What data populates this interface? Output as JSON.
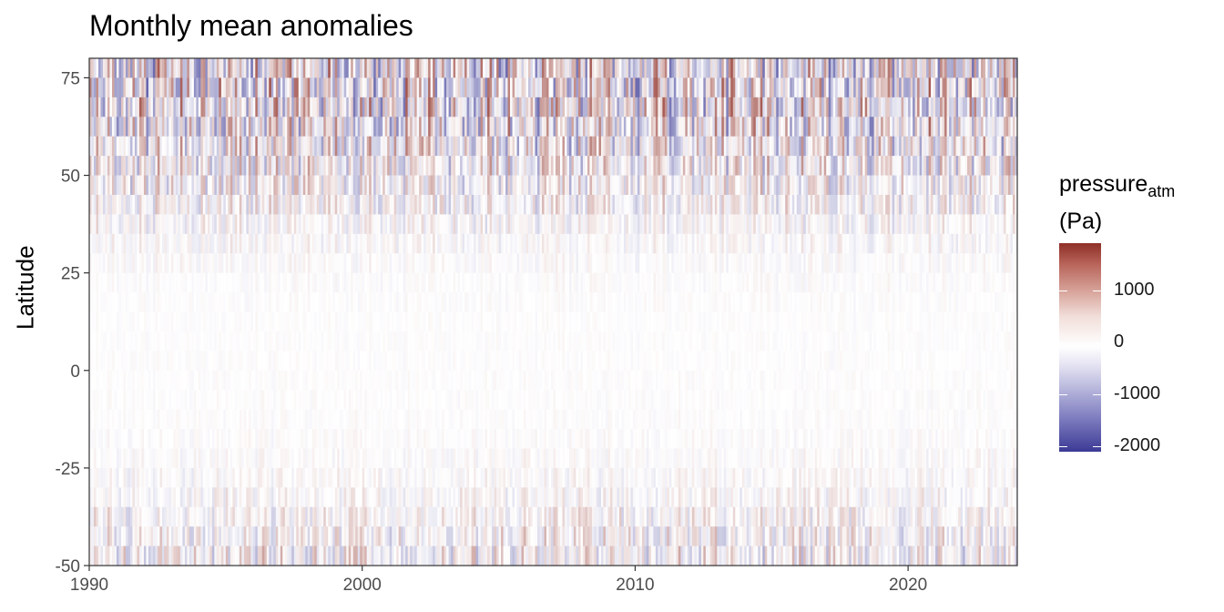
{
  "chart_data": {
    "type": "heatmap",
    "title": "Monthly mean anomalies",
    "xlabel": "",
    "ylabel": "Latitude",
    "xlim": [
      1990,
      2024
    ],
    "ylim": [
      -50,
      80
    ],
    "x_ticks": [
      "1990",
      "2000",
      "2010",
      "2020"
    ],
    "y_ticks": [
      "75",
      "50",
      "25",
      "0",
      "-25",
      "-50"
    ],
    "x_tick_values": [
      1990,
      2000,
      2010,
      2020
    ],
    "y_tick_values": [
      75,
      50,
      25,
      0,
      -25,
      -50
    ],
    "legend": {
      "title_main": "pressure",
      "title_sub": "atm",
      "title_unit": "(Pa)",
      "position": "right",
      "range": [
        -2100,
        1900
      ],
      "ticks": [
        "1000",
        "0",
        "-1000",
        "-2000"
      ],
      "tick_values": [
        1000,
        0,
        -1000,
        -2000
      ],
      "colors": {
        "high": "#8e2f26",
        "mid": "#ffffff",
        "low": "#3c3a95"
      }
    },
    "time_resolution": "monthly",
    "latitude_bands": [
      80,
      75,
      70,
      65,
      60,
      55,
      50,
      45,
      40,
      35,
      30,
      25,
      20,
      15,
      10,
      5,
      0,
      -5,
      -10,
      -15,
      -20,
      -25,
      -30,
      -35,
      -40,
      -45,
      -50
    ],
    "band_amplitude_pa": [
      1300,
      1300,
      1250,
      1150,
      950,
      800,
      650,
      480,
      320,
      200,
      120,
      80,
      60,
      50,
      50,
      50,
      50,
      55,
      60,
      80,
      120,
      170,
      260,
      380,
      500,
      620,
      700
    ],
    "grid": false
  }
}
